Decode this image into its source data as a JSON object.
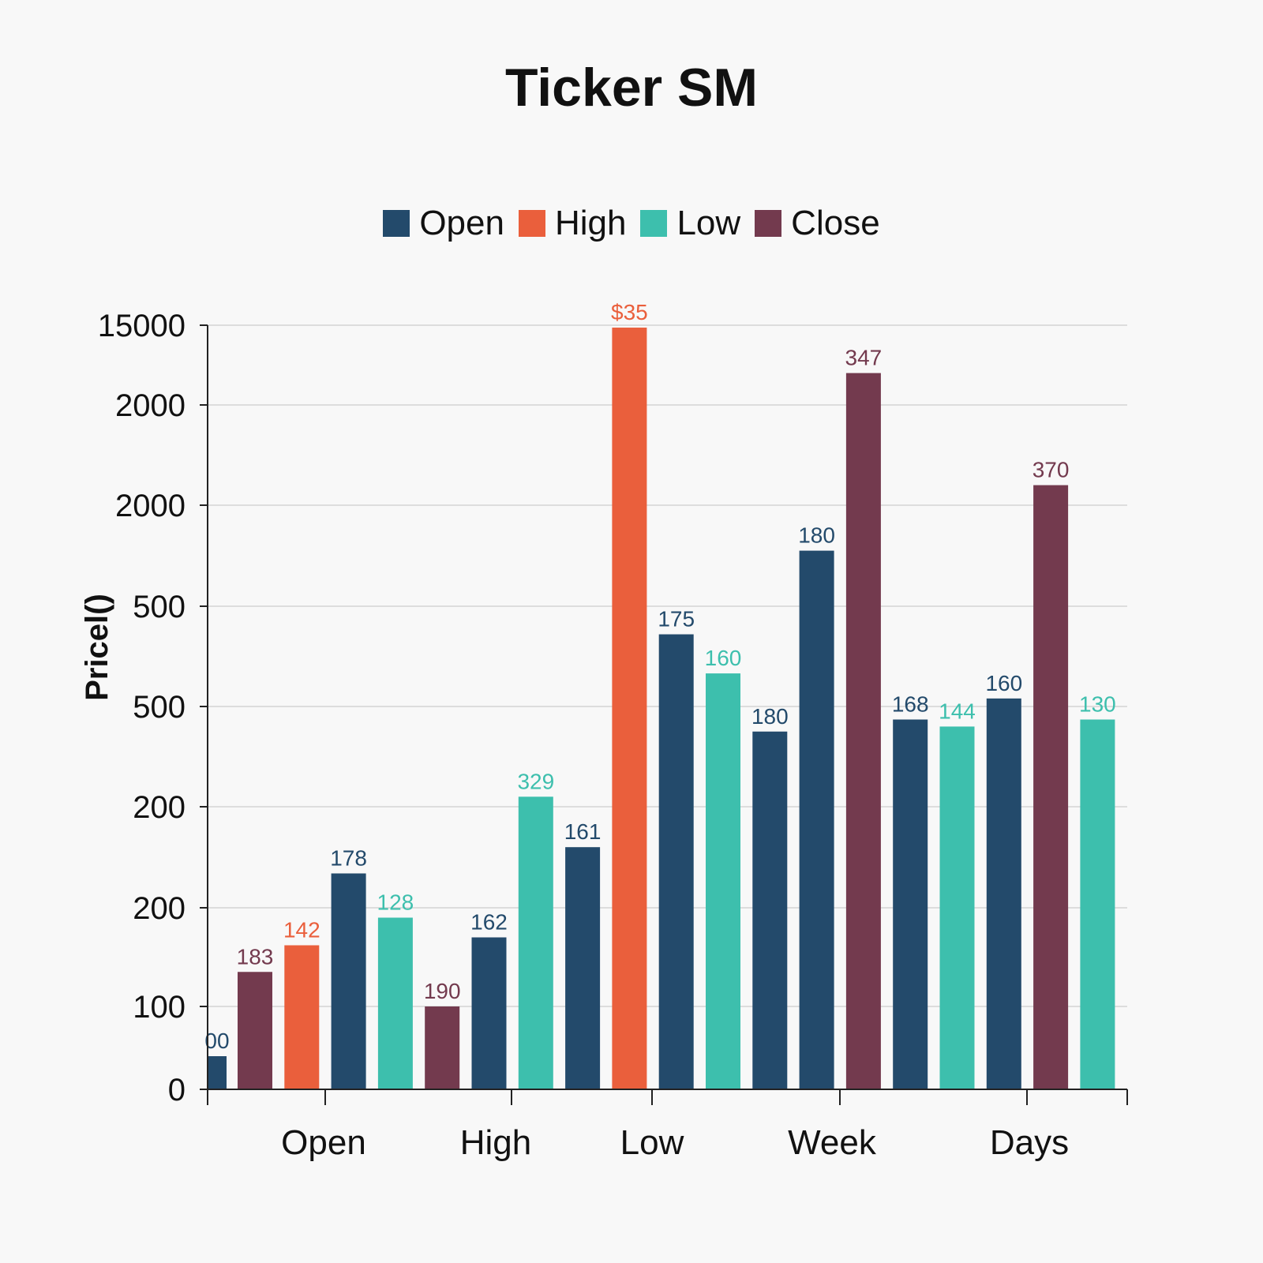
{
  "chart_data": {
    "type": "bar",
    "title": "Ticker SM",
    "ylabel": "Pricel()",
    "xlabel": "",
    "colors": {
      "Open": "#234a6b",
      "High": "#ea5f3c",
      "Low": "#3dbfad",
      "Close": "#733a4e"
    },
    "legend": [
      {
        "name": "Open",
        "color": "#234a6b"
      },
      {
        "name": "High",
        "color": "#ea5f3c"
      },
      {
        "name": "Low",
        "color": "#3dbfad"
      },
      {
        "name": "Close",
        "color": "#733a4e"
      }
    ],
    "legend_position": "top-center",
    "grid": true,
    "y_tick_labels": [
      "0",
      "100",
      "200",
      "200",
      "500",
      "500",
      "2000",
      "2000",
      "15000"
    ],
    "x_tick_labels": [
      "Open",
      "High",
      "Low",
      "Week",
      "Days"
    ],
    "bars": [
      {
        "series": "Open",
        "label": "00",
        "level": 0.4
      },
      {
        "series": "Close",
        "label": "183",
        "level": 1.35
      },
      {
        "series": "High",
        "label": "142",
        "level": 1.62
      },
      {
        "series": "Open",
        "label": "178",
        "level": 2.34
      },
      {
        "series": "Low",
        "label": "128",
        "level": 1.9
      },
      {
        "series": "Close",
        "label": "190",
        "level": 1.0
      },
      {
        "series": "Open",
        "label": "162",
        "level": 1.7
      },
      {
        "series": "Low",
        "label": "329",
        "level": 3.1
      },
      {
        "series": "Open",
        "label": "161",
        "level": 2.6
      },
      {
        "series": "High",
        "label": "$35",
        "level": 7.97
      },
      {
        "series": "Open",
        "label": "175",
        "level": 4.72
      },
      {
        "series": "Low",
        "label": "160",
        "level": 4.33
      },
      {
        "series": "Open",
        "label": "180",
        "level": 3.75
      },
      {
        "series": "Open",
        "label": "180",
        "level": 5.55
      },
      {
        "series": "Close",
        "label": "347",
        "level": 7.4
      },
      {
        "series": "Open",
        "label": "168",
        "level": 3.87
      },
      {
        "series": "Low",
        "label": "144",
        "level": 3.8
      },
      {
        "series": "Open",
        "label": "160",
        "level": 4.08
      },
      {
        "series": "Close",
        "label": "370",
        "level": 6.2
      },
      {
        "series": "Low",
        "label": "130",
        "level": 3.87
      }
    ]
  }
}
